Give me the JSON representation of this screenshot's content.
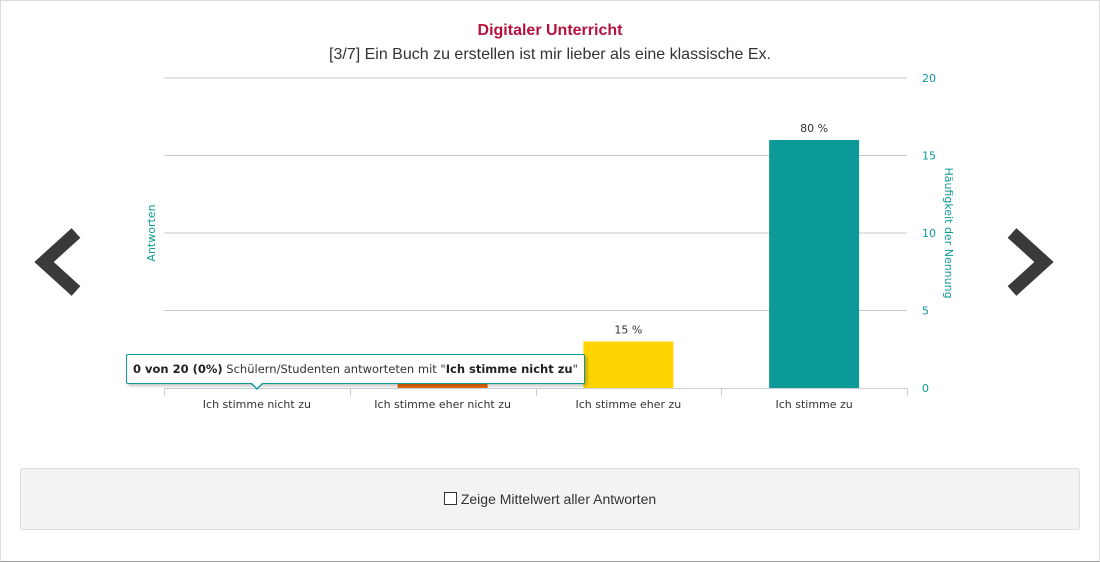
{
  "colors": {
    "title": "#b5123e",
    "teal": "#0b9a98",
    "orange": "#ec6b0a",
    "yellow": "#ffd400",
    "grid": "#c8c8c8",
    "nav": "#3a3a3a"
  },
  "header": {
    "title": "Digitaler Unterricht",
    "subtitle": "[3/7] Ein Buch zu erstellen ist mir lieber als eine klassische Ex."
  },
  "nav": {
    "prev_icon": "chevron-left-icon",
    "next_icon": "chevron-right-icon"
  },
  "chart_data": {
    "type": "bar",
    "categories": [
      "Ich stimme nicht zu",
      "Ich stimme eher nicht zu",
      "Ich stimme eher zu",
      "Ich stimme zu"
    ],
    "values": [
      0,
      1,
      3,
      16
    ],
    "data_labels": [
      "",
      "",
      "15 %",
      "80 %"
    ],
    "bar_colors": [
      "#ec6b0a",
      "#ec6b0a",
      "#ffd400",
      "#0b9a98"
    ],
    "ylabel_left": "Antworten",
    "ylabel_right": "Häufigkeit der Nennung",
    "yticks": [
      "0",
      "5",
      "10",
      "15",
      "20"
    ],
    "ylim": [
      0,
      20
    ],
    "grid": true
  },
  "tooltip": {
    "count": "0 von 20 (0%)",
    "text": " Schülern/Studenten antworteten mit \"",
    "answer": "Ich stimme nicht zu",
    "closing": "\""
  },
  "footer": {
    "checkbox_label": "Zeige Mittelwert aller Antworten"
  }
}
